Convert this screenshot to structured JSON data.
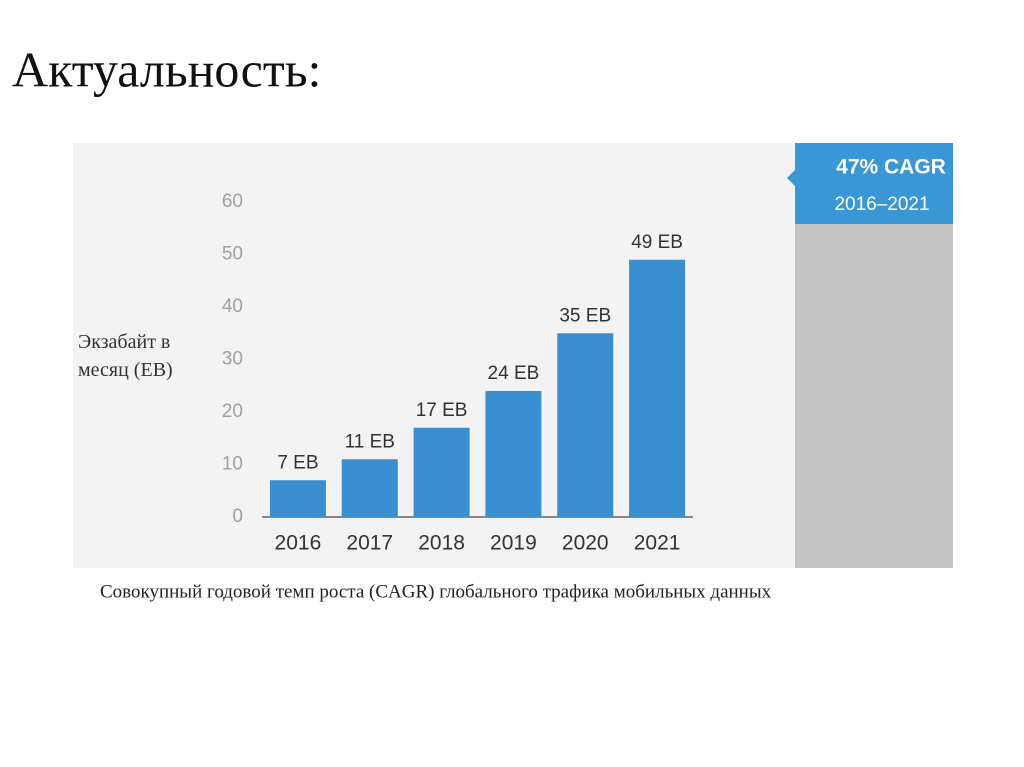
{
  "slide_title": "Актуальность:",
  "caption": "Совокупный годовой темп роста (CAGR) глобального трафика мобильных данных",
  "chart_data": {
    "type": "bar",
    "ylabel": "Экзабайт в месяц (EB)",
    "annotations": [
      "47% CAGR",
      "2016–2021"
    ],
    "categories": [
      "2016",
      "2017",
      "2018",
      "2019",
      "2020",
      "2021"
    ],
    "values": [
      7,
      11,
      17,
      24,
      35,
      49
    ],
    "value_labels": [
      "7 EB",
      "11 EB",
      "17 EB",
      "24 EB",
      "35 EB",
      "49 EB"
    ],
    "color": "#3a8fd1",
    "ylim": [
      0,
      60
    ],
    "yticks": [
      0,
      10,
      20,
      30,
      40,
      50,
      60
    ],
    "grid": false
  }
}
